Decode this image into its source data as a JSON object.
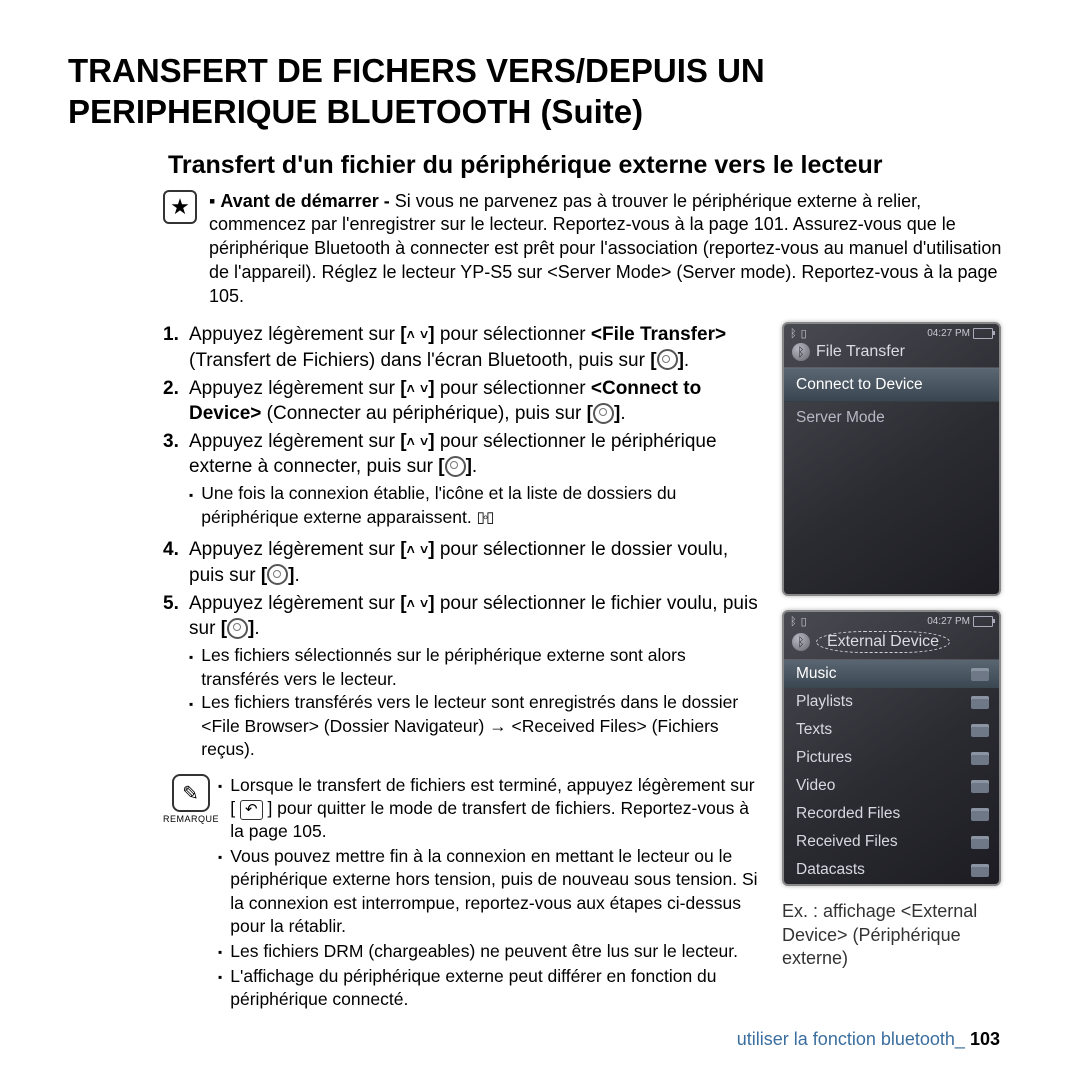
{
  "title": "TRANSFERT DE FICHERS VERS/DEPUIS UN PERIPHERIQUE BLUETOOTH (Suite)",
  "subtitle": "Transfert d'un fichier du périphérique externe vers le lecteur",
  "intro_bold": "Avant de démarrer -",
  "intro_rest": " Si vous ne parvenez pas à trouver le périphérique externe à relier, commencez par l'enregistrer sur le lecteur. Reportez-vous à la page 101. Assurez-vous que le périphérique Bluetooth à connecter est prêt pour l'association (reportez-vous au manuel d'utilisation de l'appareil). Réglez le lecteur YP-S5 sur <Server Mode> (Server mode). Reportez-vous à la page 105.",
  "steps": {
    "s1_a": "Appuyez légèrement sur ",
    "s1_b": " pour sélectionner ",
    "s1_bold": "<File Transfer>",
    "s1_c": " (Transfert de Fichiers) dans l'écran Bluetooth, puis sur ",
    "s2_a": "Appuyez légèrement sur ",
    "s2_b": " pour sélectionner ",
    "s2_bold": "<Connect to Device>",
    "s2_c": " (Connecter au périphérique), puis sur ",
    "s3_a": "Appuyez légèrement sur ",
    "s3_b": " pour sélectionner le périphérique externe à connecter, puis sur ",
    "s3_sub": "Une fois la connexion établie, l'icône et la liste de dossiers du périphérique externe apparaissent. ",
    "s4_a": "Appuyez légèrement sur ",
    "s4_b": " pour sélectionner le dossier voulu, puis sur ",
    "s5_a": "Appuyez légèrement sur ",
    "s5_b": " pour sélectionner le fichier voulu, puis sur ",
    "s5_sub1": "Les fichiers sélectionnés sur le périphérique externe sont alors transférés vers le lecteur.",
    "s5_sub2": "Les fichiers transférés vers le lecteur sont enregistrés dans le dossier <File Browser> (Dossier Navigateur) → <Received Files> (Fichiers reçus)."
  },
  "note_label": "REMARQUE",
  "notes": {
    "n1a": "Lorsque le transfert de fichiers est terminé, appuyez légèrement sur [ ",
    "n1b": " ] pour quitter le mode de transfert de fichiers. Reportez-vous à la page 105.",
    "n2": "Vous pouvez mettre fin à la connexion en mettant le lecteur ou le périphérique externe hors tension, puis de nouveau sous tension. Si la connexion est interrompue, reportez-vous aux étapes ci-dessus pour la rétablir.",
    "n3": "Les fichiers DRM (chargeables) ne peuvent être lus sur le lecteur.",
    "n4": "L'affichage du périphérique externe peut différer en fonction du périphérique connecté."
  },
  "device1": {
    "time": "04:27 PM",
    "header": "File Transfer",
    "items": [
      "Connect to Device",
      "Server Mode"
    ],
    "selected_index": 0
  },
  "device2": {
    "time": "04:27 PM",
    "header": "External Device",
    "items": [
      "Music",
      "Playlists",
      "Texts",
      "Pictures",
      "Video",
      "Recorded Files",
      "Received Files",
      "Datacasts"
    ],
    "selected_index": 0
  },
  "caption": "Ex. : affichage <External Device> (Périphérique externe)",
  "footer_text": "utiliser la fonction bluetooth_",
  "footer_page": "103"
}
